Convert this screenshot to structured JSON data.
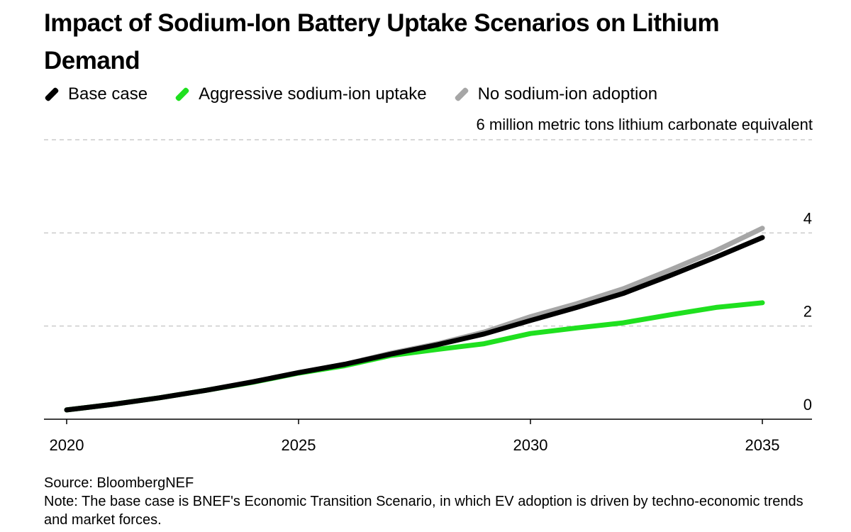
{
  "title": "Impact of Sodium-Ion Battery Uptake Scenarios on Lithium Demand",
  "colors": {
    "base": "#000000",
    "aggressive": "#1fe01f",
    "none": "#a6a6a6",
    "grid": "#cccccc"
  },
  "legend": [
    {
      "label": "Base case",
      "color": "#000000"
    },
    {
      "label": "Aggressive sodium-ion uptake",
      "color": "#1fe01f"
    },
    {
      "label": "No sodium-ion adoption",
      "color": "#a6a6a6"
    }
  ],
  "chart_data": {
    "type": "line",
    "title": "Impact of Sodium-Ion Battery Uptake Scenarios on Lithium Demand",
    "ylabel": "million metric tons lithium carbonate equivalent",
    "xlim": [
      2020,
      2035
    ],
    "ylim": [
      0,
      6
    ],
    "xticks": [
      2020,
      2025,
      2030,
      2035
    ],
    "yticks": [
      {
        "value": 0,
        "label": "0"
      },
      {
        "value": 2,
        "label": "2"
      },
      {
        "value": 4,
        "label": "4"
      },
      {
        "value": 6,
        "label": "6"
      }
    ],
    "grid": true,
    "legend_position": "top-left",
    "x": [
      2020,
      2021,
      2022,
      2023,
      2024,
      2025,
      2026,
      2027,
      2028,
      2029,
      2030,
      2031,
      2032,
      2033,
      2034,
      2035
    ],
    "series": [
      {
        "name": "No sodium-ion adoption",
        "color": "#a6a6a6",
        "values": [
          0.2,
          0.32,
          0.46,
          0.62,
          0.8,
          1.0,
          1.18,
          1.42,
          1.62,
          1.87,
          2.2,
          2.48,
          2.8,
          3.2,
          3.62,
          4.1
        ]
      },
      {
        "name": "Aggressive sodium-ion uptake",
        "color": "#1fe01f",
        "values": [
          0.2,
          0.32,
          0.46,
          0.62,
          0.79,
          0.99,
          1.15,
          1.37,
          1.5,
          1.62,
          1.84,
          1.96,
          2.07,
          2.24,
          2.4,
          2.5
        ]
      },
      {
        "name": "Base case",
        "color": "#000000",
        "values": [
          0.2,
          0.32,
          0.46,
          0.62,
          0.8,
          1.0,
          1.18,
          1.4,
          1.6,
          1.83,
          2.12,
          2.4,
          2.7,
          3.08,
          3.48,
          3.9
        ]
      }
    ]
  },
  "footer": {
    "source": "Source: BloombergNEF",
    "note": "Note: The base case is BNEF's Economic Transition Scenario, in which EV adoption is driven by techno-economic trends and market forces."
  }
}
